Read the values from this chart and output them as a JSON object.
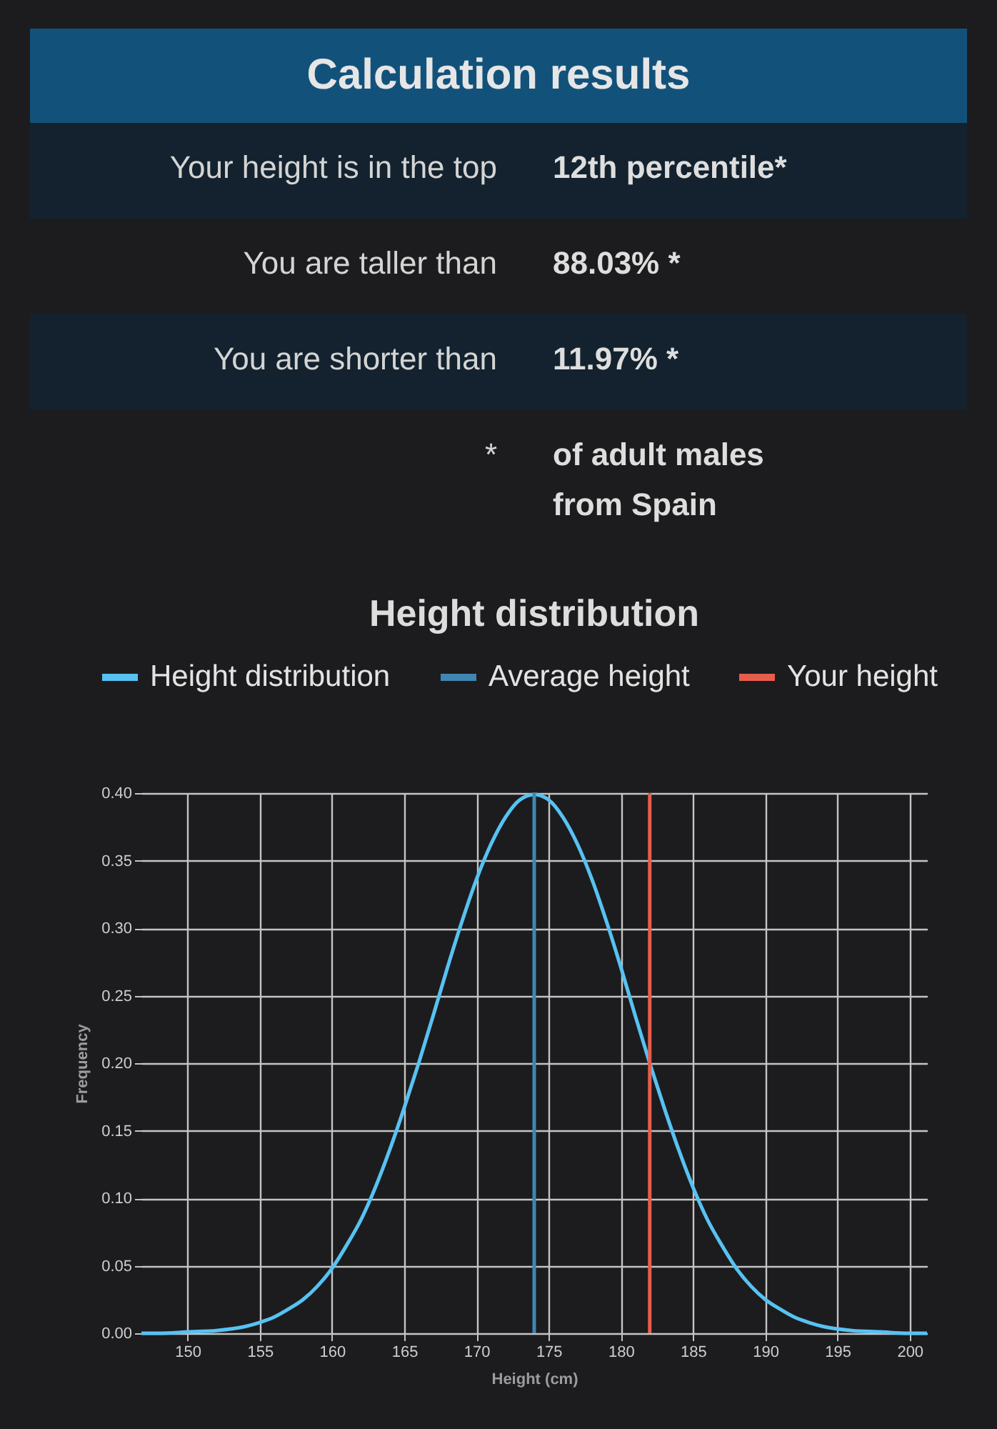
{
  "chart_data": [
    {
      "type": "other",
      "title": "Calculation results",
      "annotations": [
        "Your height is in the top",
        "12th percentile*",
        "You are taller than",
        "88.03% *",
        "You are shorter than",
        "11.97% *",
        "*",
        "of adult males from Spain"
      ]
    },
    {
      "type": "line",
      "title": "Height distribution",
      "xlabel": "Height (cm)",
      "ylabel": "Frequency",
      "x": [
        146.8,
        148,
        150,
        152,
        154,
        155,
        156,
        157,
        158,
        159,
        160,
        161,
        162,
        163,
        164,
        165,
        166,
        167,
        168,
        169,
        170,
        171,
        172,
        173,
        174,
        175,
        176,
        177,
        178,
        179,
        180,
        181,
        182,
        183,
        184,
        185,
        186,
        187,
        188,
        189,
        190,
        191,
        192,
        193,
        194,
        196,
        198,
        200,
        201.2
      ],
      "series": [
        {
          "name": "Height distribution",
          "color": "#57c2f2",
          "values": [
            0.0,
            0.0,
            0.001,
            0.002,
            0.005,
            0.008,
            0.012,
            0.018,
            0.025,
            0.035,
            0.048,
            0.065,
            0.084,
            0.108,
            0.136,
            0.167,
            0.2,
            0.235,
            0.271,
            0.305,
            0.336,
            0.362,
            0.382,
            0.395,
            0.399,
            0.395,
            0.382,
            0.362,
            0.336,
            0.305,
            0.271,
            0.235,
            0.2,
            0.167,
            0.136,
            0.108,
            0.084,
            0.065,
            0.048,
            0.035,
            0.025,
            0.018,
            0.012,
            0.008,
            0.005,
            0.002,
            0.001,
            0.0,
            0.0
          ]
        }
      ],
      "ref_lines": [
        {
          "axis": "x",
          "value": 174,
          "label": "Average height",
          "color": "#3f87b2"
        },
        {
          "axis": "x",
          "value": 182,
          "label": "Your height",
          "color": "#e65e4b"
        }
      ],
      "xlim": [
        146.8,
        201.2
      ],
      "xticks": [
        150,
        155,
        160,
        165,
        170,
        175,
        180,
        185,
        190,
        195,
        200
      ],
      "ylim": [
        0,
        0.4
      ],
      "yticks": [
        {
          "value": 0,
          "label": "0.00"
        },
        {
          "value": 0.05,
          "label": "0.05"
        },
        {
          "value": 0.1,
          "label": "0.10"
        },
        {
          "value": 0.15,
          "label": "0.15"
        },
        {
          "value": 0.2,
          "label": "0.20"
        },
        {
          "value": 0.25,
          "label": "0.25"
        },
        {
          "value": 0.3,
          "label": "0.30"
        },
        {
          "value": 0.35,
          "label": "0.35"
        },
        {
          "value": 0.4,
          "label": "0.40"
        }
      ],
      "grid": true,
      "legend": "top"
    }
  ]
}
